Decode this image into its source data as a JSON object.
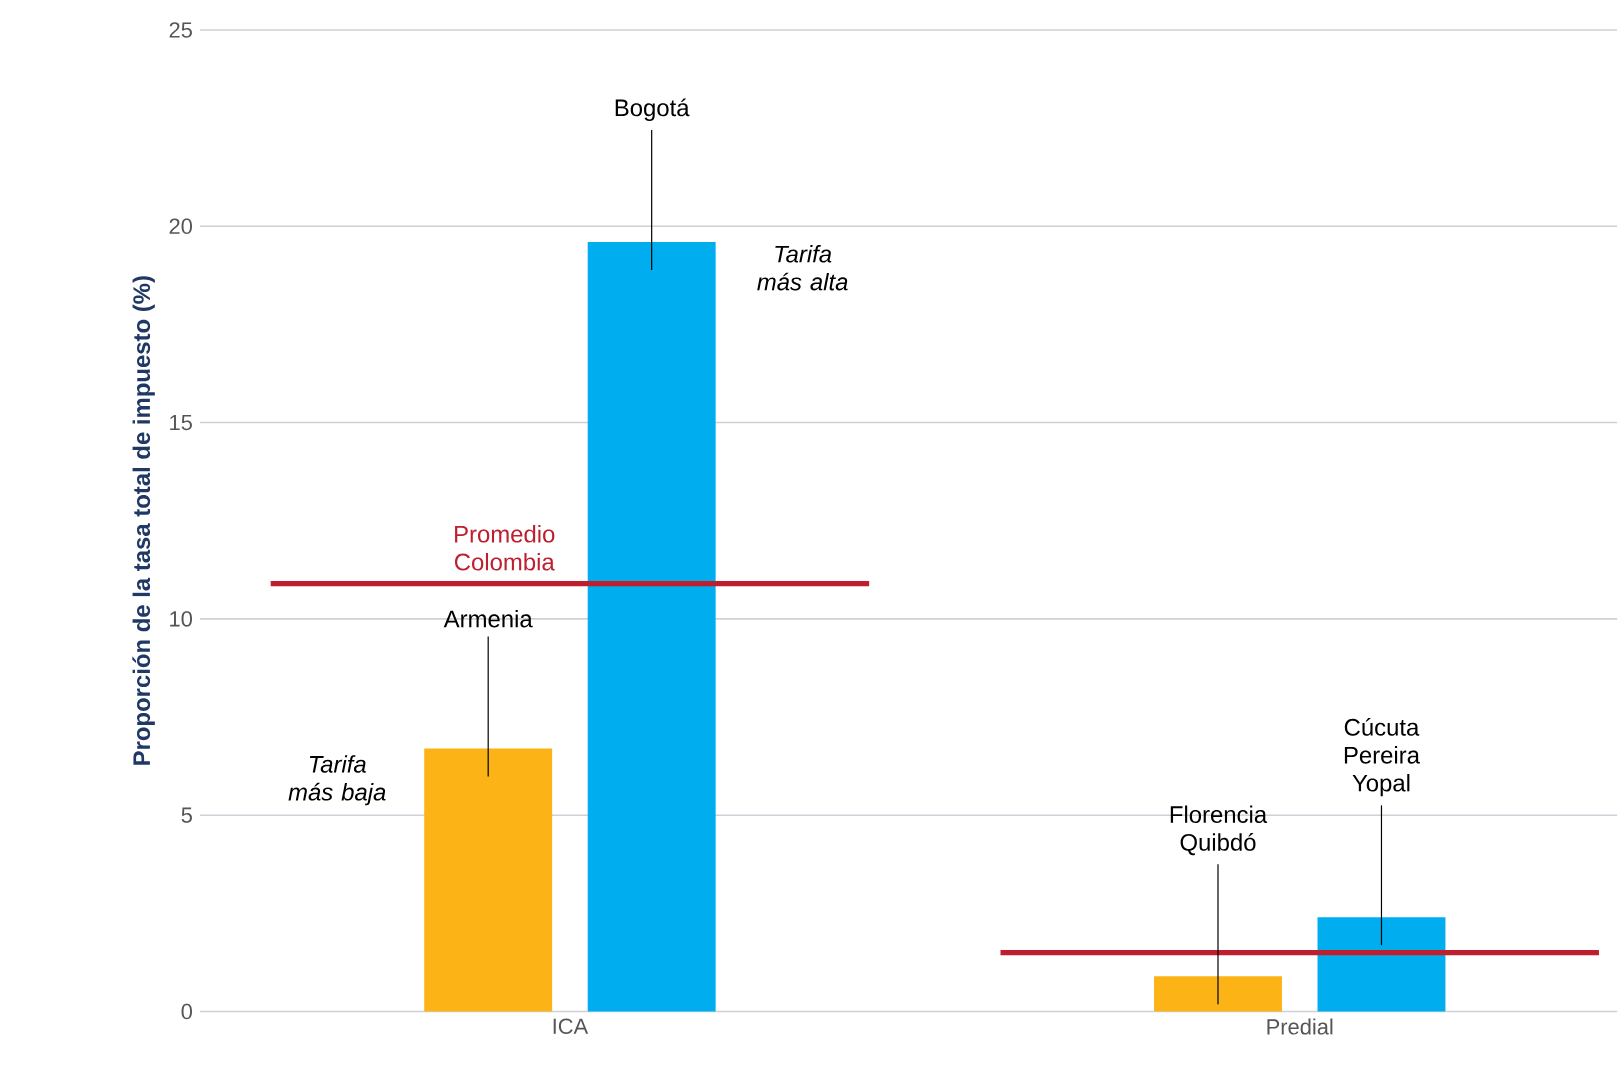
{
  "chart_data": {
    "type": "bar",
    "ylabel": "Proporción de la tasa total de impuesto (%)",
    "categories": [
      "ICA",
      "Predial"
    ],
    "series": [
      {
        "color": "#fbb316",
        "values": [
          6.7,
          0.9
        ],
        "value_labels": [
          "Armenia",
          "Florencia Quibdó"
        ]
      },
      {
        "color": "#00aeef",
        "values": [
          19.6,
          2.4
        ],
        "value_labels": [
          "Bogotá",
          "Cúcuta Pereira Yopal"
        ]
      }
    ],
    "ylim": [
      0,
      25
    ],
    "yticks": [
      0,
      5,
      10,
      15,
      20,
      25
    ],
    "grid": "y",
    "ref_lines": [
      {
        "axis": "y",
        "value": 10.9,
        "label": "Promedio Colombia",
        "color": "#be1e2d"
      },
      {
        "axis": "y",
        "value": 1.5,
        "color": "#be1e2d"
      }
    ],
    "annotations": [
      "Tarifa más baja",
      "Tarifa más alta"
    ]
  }
}
